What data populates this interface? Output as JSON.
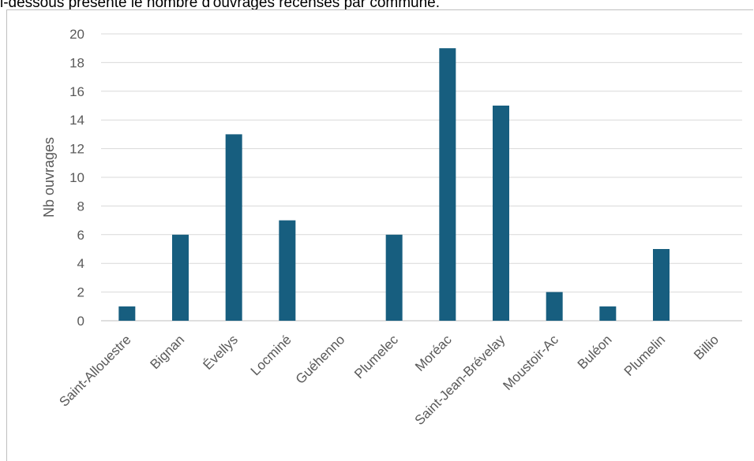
{
  "header": {
    "text": "i-dessous présente le nombre d'ouvrages recensés par commune."
  },
  "chart_data": {
    "type": "bar",
    "categories": [
      "Saint-Allouestre",
      "Bignan",
      "Évellys",
      "Locminé",
      "Guéhenno",
      "Plumelec",
      "Moréac",
      "Saint-Jean-Brévelay",
      "Moustoir-Ac",
      "Buléon",
      "Plumelin",
      "Billio"
    ],
    "values": [
      1,
      6,
      13,
      7,
      0,
      6,
      19,
      15,
      2,
      1,
      5,
      0
    ],
    "ylabel": "Nb ouvrages",
    "xlabel": "",
    "ylim": [
      0,
      20
    ],
    "yticks": [
      0,
      2,
      4,
      6,
      8,
      10,
      12,
      14,
      16,
      18,
      20
    ],
    "bar_color": "#175e7f",
    "grid": true,
    "legend": "none"
  }
}
